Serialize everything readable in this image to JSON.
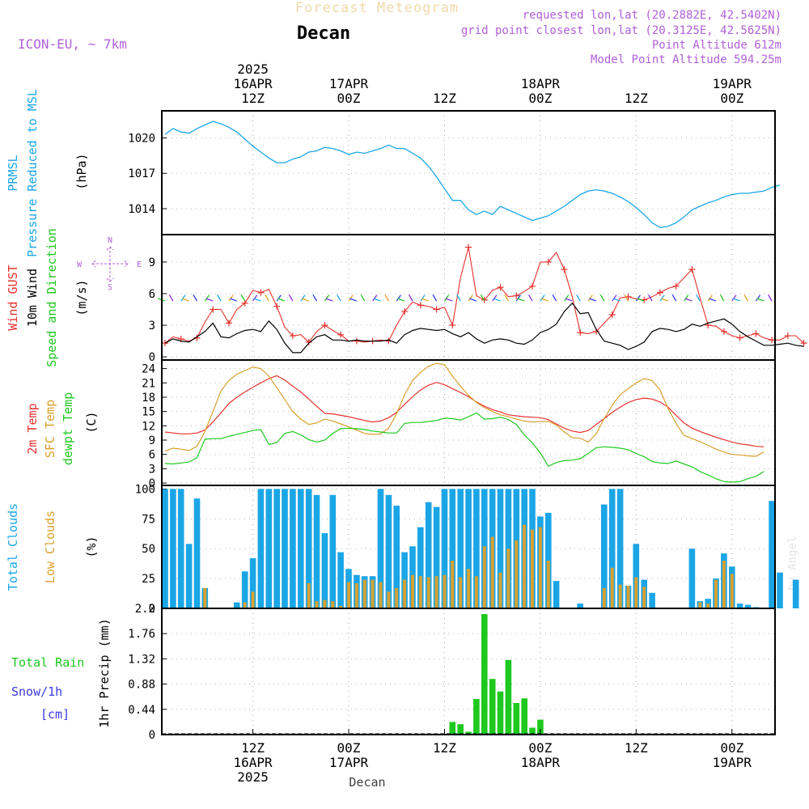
{
  "header": {
    "title": "Forecast Meteogram",
    "location": "Decan",
    "model": "ICON-EU, ~ 7km",
    "requested": "requested lon,lat (20.2882E, 42.5402N)",
    "grid": "grid point closest lon,lat (20.3125E, 42.5625N)",
    "altitude": "Point Altitude 612m",
    "model_altitude": "Model Point Altitude 594.25m",
    "footer_location": "Decan",
    "credit": "by Angel"
  },
  "top_axis": {
    "labels": [
      {
        "h": 12,
        "lines": [
          "2025",
          "16APR",
          "12Z"
        ]
      },
      {
        "h": 24,
        "lines": [
          "17APR",
          "00Z"
        ]
      },
      {
        "h": 36,
        "lines": [
          "12Z"
        ]
      },
      {
        "h": 48,
        "lines": [
          "18APR",
          "00Z"
        ]
      },
      {
        "h": 60,
        "lines": [
          "12Z"
        ]
      },
      {
        "h": 72,
        "lines": [
          "19APR",
          "00Z"
        ]
      }
    ]
  },
  "bottom_axis": {
    "labels": [
      {
        "h": 12,
        "lines": [
          "12Z",
          "16APR",
          "2025"
        ]
      },
      {
        "h": 24,
        "lines": [
          "00Z",
          "17APR"
        ]
      },
      {
        "h": 36,
        "lines": [
          "12Z"
        ]
      },
      {
        "h": 48,
        "lines": [
          "00Z",
          "18APR"
        ]
      },
      {
        "h": 60,
        "lines": [
          "12Z"
        ]
      },
      {
        "h": 72,
        "lines": [
          "00Z",
          "19APR"
        ]
      }
    ]
  },
  "panel_labels": {
    "pressure": [
      {
        "text": "PRMSL",
        "color": "#1aa6e6"
      },
      {
        "text": "Pressure Reduced to MSL",
        "color": "#1aa6e6"
      },
      {
        "text": "(hPa)",
        "color": "#000000"
      }
    ],
    "wind": [
      {
        "text": "Wind GUST",
        "color": "#e6322e"
      },
      {
        "text": "10m Wind",
        "color": "#000000"
      },
      {
        "text": "Speed and Direction",
        "color": "#1ec81e"
      },
      {
        "text": "(m/s)",
        "color": "#000000"
      }
    ],
    "temp": [
      {
        "text": "2m Temp",
        "color": "#e6322e"
      },
      {
        "text": "SFC Temp",
        "color": "#d8a030"
      },
      {
        "text": "dewpt Temp",
        "color": "#1ec81e"
      },
      {
        "text": "(C)",
        "color": "#000000"
      }
    ],
    "cloud": [
      {
        "text": "Total Clouds",
        "color": "#1aa6e6"
      },
      {
        "text": "Low Clouds",
        "color": "#d8a030"
      },
      {
        "text": "(%)",
        "color": "#000000"
      }
    ],
    "precip_axis": "1hr Precip (mm)",
    "precip_legend": [
      {
        "text": "Total  Rain",
        "color": "#1ec81e"
      },
      {
        "text": "Snow/1h",
        "color": "#3a3ae6"
      },
      {
        "text": "[cm]",
        "color": "#3a3ae6"
      }
    ]
  },
  "compass": {
    "n": "N",
    "s": "S",
    "w": "W",
    "e": "E"
  },
  "chart_data": [
    {
      "type": "line",
      "name": "pressure",
      "x_unit": "hours from 16APR 00Z",
      "x_range": [
        1,
        77
      ],
      "ylim": [
        1011.8,
        1022.3
      ],
      "yticks": [
        1014,
        1017,
        1020
      ],
      "series": [
        {
          "name": "PRMSL",
          "color": "#1aa6e6",
          "values": [
            1020.3,
            1020.8,
            1020.5,
            1020.4,
            1020.8,
            1021.1,
            1021.4,
            1021.2,
            1020.9,
            1020.5,
            1019.9,
            1019.3,
            1018.8,
            1018.3,
            1017.9,
            1017.9,
            1018.2,
            1018.4,
            1018.8,
            1018.9,
            1019.2,
            1019.1,
            1018.9,
            1018.6,
            1018.8,
            1018.7,
            1018.9,
            1019.1,
            1019.4,
            1019.1,
            1019.1,
            1018.7,
            1018.3,
            1017.6,
            1016.7,
            1015.7,
            1014.7,
            1014.7,
            1013.9,
            1013.5,
            1013.8,
            1013.5,
            1014.2,
            1013.9,
            1013.6,
            1013.3,
            1013.0,
            1013.2,
            1013.4,
            1013.8,
            1014.2,
            1014.7,
            1015.2,
            1015.5,
            1015.6,
            1015.5,
            1015.3,
            1015.0,
            1014.6,
            1014.1,
            1013.5,
            1012.8,
            1012.4,
            1012.5,
            1012.8,
            1013.3,
            1013.9,
            1014.2,
            1014.5,
            1014.7,
            1015.0,
            1015.2,
            1015.3,
            1015.3,
            1015.4,
            1015.5,
            1015.8,
            1016.0
          ]
        }
      ]
    },
    {
      "type": "line",
      "name": "wind",
      "x_unit": "hours from 16APR 00Z",
      "ylim": [
        -0.3,
        11.6
      ],
      "yticks": [
        0,
        3,
        6,
        9
      ],
      "series": [
        {
          "name": "Wind GUST",
          "color": "#e6322e",
          "values": [
            1.3,
            1.9,
            1.7,
            1.5,
            1.8,
            3.3,
            4.5,
            4.5,
            3.2,
            4.5,
            5.1,
            6.3,
            6.1,
            6.4,
            4.8,
            2.8,
            2.0,
            2.1,
            1.4,
            2.4,
            3.0,
            2.5,
            2.1,
            1.5,
            1.5,
            1.4,
            1.5,
            1.6,
            1.5,
            3.0,
            4.3,
            5.2,
            4.9,
            4.8,
            4.5,
            4.7,
            3.0,
            7.5,
            10.4,
            5.8,
            5.4,
            6.3,
            6.6,
            5.7,
            5.8,
            6.2,
            6.7,
            9.0,
            9.0,
            9.9,
            8.3,
            5.7,
            2.3,
            2.2,
            2.4,
            3.2,
            4.0,
            5.6,
            5.7,
            5.5,
            5.4,
            5.7,
            6.1,
            6.5,
            6.7,
            7.5,
            8.3,
            5.6,
            3.0,
            2.9,
            2.4,
            2.0,
            1.8,
            2.0,
            2.2,
            1.8,
            1.6,
            1.6,
            2.0,
            2.0,
            1.3
          ]
        },
        {
          "name": "10m Wind",
          "color": "#000000",
          "values": [
            1.3,
            1.7,
            1.5,
            1.4,
            1.9,
            2.4,
            3.2,
            1.9,
            1.8,
            2.2,
            2.5,
            2.6,
            2.4,
            3.4,
            2.6,
            1.3,
            0.4,
            0.4,
            1.3,
            1.9,
            2.1,
            1.6,
            1.6,
            1.5,
            1.6,
            1.5,
            1.5,
            1.5,
            1.6,
            1.3,
            2.1,
            2.5,
            2.7,
            2.6,
            2.5,
            2.6,
            2.2,
            1.9,
            2.3,
            1.7,
            1.3,
            1.6,
            1.7,
            1.6,
            1.3,
            1.2,
            1.6,
            2.3,
            2.6,
            3.1,
            4.3,
            5.1,
            4.1,
            4.2,
            2.6,
            1.5,
            1.3,
            1.1,
            0.7,
            1.0,
            1.4,
            2.4,
            2.7,
            2.6,
            2.4,
            2.6,
            3.1,
            2.9,
            3.2,
            3.4,
            3.6,
            3.1,
            2.4,
            1.9,
            1.5,
            1.1,
            1.1,
            1.2,
            1.3,
            1.1,
            1.0
          ]
        }
      ]
    },
    {
      "type": "line",
      "name": "temperature",
      "x_unit": "hours from 16APR 00Z",
      "ylim": [
        -0.5,
        25.8
      ],
      "yticks": [
        0,
        3,
        6,
        9,
        12,
        15,
        18,
        21,
        24
      ],
      "series": [
        {
          "name": "2m Temp",
          "color": "#e6322e",
          "values": [
            10.7,
            10.5,
            10.3,
            10.3,
            10.5,
            11.1,
            12.8,
            14.7,
            16.7,
            18.0,
            19.1,
            20.1,
            21.0,
            21.9,
            22.5,
            21.6,
            20.3,
            19.1,
            17.6,
            16.1,
            14.6,
            14.5,
            14.2,
            13.9,
            13.5,
            13.1,
            12.8,
            13.0,
            13.7,
            14.8,
            16.5,
            18.1,
            19.5,
            20.5,
            21.1,
            20.6,
            19.8,
            19.0,
            18.1,
            17.0,
            16.1,
            15.4,
            14.9,
            14.3,
            14.1,
            13.9,
            13.8,
            13.7,
            13.3,
            12.4,
            11.5,
            10.9,
            10.6,
            11.0,
            12.3,
            13.5,
            14.8,
            15.9,
            16.9,
            17.5,
            17.8,
            17.6,
            17.0,
            15.9,
            14.2,
            12.6,
            11.5,
            10.8,
            10.2,
            9.6,
            9.1,
            8.6,
            8.2,
            8.0,
            7.7,
            7.6
          ]
        },
        {
          "name": "SFC Temp",
          "color": "#d8a030",
          "values": [
            6.7,
            7.3,
            7.1,
            6.8,
            7.7,
            10.8,
            15.0,
            19.3,
            21.5,
            22.8,
            23.6,
            24.3,
            24.0,
            22.4,
            20.0,
            17.5,
            15.0,
            13.4,
            12.3,
            12.6,
            13.4,
            13.0,
            12.4,
            11.8,
            11.1,
            10.4,
            10.2,
            10.3,
            11.5,
            14.5,
            18.5,
            21.5,
            23.2,
            24.5,
            25.1,
            24.8,
            22.4,
            20.3,
            18.4,
            16.9,
            15.8,
            15.0,
            14.3,
            13.9,
            13.4,
            13.0,
            12.8,
            12.9,
            12.9,
            12.2,
            10.7,
            9.5,
            9.4,
            8.6,
            10.3,
            13.5,
            16.3,
            18.5,
            19.8,
            21.0,
            21.9,
            21.5,
            19.5,
            15.6,
            12.5,
            10.0,
            9.3,
            8.7,
            7.9,
            7.1,
            6.5,
            6.0,
            5.9,
            5.7,
            5.6,
            6.5
          ]
        },
        {
          "name": "dewpt Temp",
          "color": "#1ec81e",
          "values": [
            4.1,
            4.0,
            4.2,
            4.4,
            5.3,
            9.2,
            9.3,
            9.3,
            9.8,
            10.2,
            10.6,
            11.0,
            11.2,
            8.1,
            8.5,
            10.4,
            10.8,
            10.1,
            9.1,
            8.6,
            9.0,
            10.4,
            11.4,
            11.5,
            11.4,
            11.2,
            10.9,
            10.7,
            10.5,
            10.5,
            12.5,
            12.7,
            12.7,
            12.9,
            13.1,
            13.6,
            13.5,
            13.2,
            13.9,
            14.7,
            13.4,
            13.5,
            13.8,
            13.3,
            12.3,
            10.1,
            8.4,
            6.3,
            3.5,
            4.3,
            4.7,
            4.8,
            5.1,
            6.2,
            7.4,
            7.6,
            7.5,
            7.3,
            7.0,
            6.2,
            5.5,
            4.5,
            4.2,
            4.1,
            4.6,
            4.0,
            3.4,
            2.4,
            1.7,
            0.9,
            0.3,
            0.2,
            0.3,
            0.9,
            1.4,
            2.4
          ]
        }
      ]
    },
    {
      "type": "bar",
      "name": "clouds",
      "x_unit": "hours from 16APR 00Z",
      "ylim": [
        0,
        103
      ],
      "yticks": [
        0,
        25,
        50,
        75,
        100
      ],
      "series": [
        {
          "name": "Total Clouds",
          "color": "#1aa6e6",
          "values": [
            100,
            100,
            100,
            54,
            92,
            17,
            0,
            0,
            0,
            5,
            31,
            42,
            100,
            100,
            100,
            100,
            100,
            100,
            100,
            95,
            63,
            95,
            47,
            33,
            28,
            27,
            27,
            100,
            95,
            86,
            47,
            52,
            68,
            89,
            85,
            100,
            100,
            100,
            100,
            100,
            100,
            100,
            100,
            100,
            100,
            100,
            100,
            77,
            80,
            23,
            0,
            0,
            4,
            0,
            0,
            87,
            100,
            100,
            19,
            54,
            24,
            13,
            0,
            0,
            0,
            0,
            50,
            6,
            8,
            25,
            46,
            35,
            4,
            3,
            1,
            0,
            90,
            30,
            0,
            24
          ]
        },
        {
          "name": "Low Clouds",
          "color": "#d8a030",
          "values": [
            0,
            0,
            0,
            0,
            0,
            17,
            0,
            0,
            0,
            0,
            5,
            14,
            0,
            0,
            0,
            0,
            0,
            0,
            21,
            6,
            7,
            6,
            2,
            22,
            21,
            24,
            24,
            22,
            14,
            17,
            24,
            28,
            27,
            26,
            27,
            28,
            40,
            26,
            33,
            27,
            52,
            60,
            30,
            50,
            57,
            70,
            66,
            68,
            40,
            0,
            0,
            0,
            0,
            0,
            0,
            17,
            34,
            20,
            19,
            26,
            18,
            0,
            0,
            0,
            0,
            0,
            0,
            5,
            4,
            24,
            40,
            29,
            0,
            0,
            0,
            0,
            0,
            0,
            0,
            0
          ]
        }
      ]
    },
    {
      "type": "bar",
      "name": "precipitation",
      "x_unit": "hours from 16APR 00Z",
      "ylim": [
        0,
        2.2
      ],
      "yticks": [
        0,
        0.44,
        0.88,
        1.32,
        1.76,
        2.2
      ],
      "series": [
        {
          "name": "Total Rain",
          "color": "#1ec81e",
          "points": [
            [
              37,
              0.22
            ],
            [
              38,
              0.18
            ],
            [
              39,
              0.05
            ],
            [
              40,
              0.62
            ],
            [
              41,
              2.1
            ],
            [
              42,
              0.97
            ],
            [
              43,
              0.75
            ],
            [
              44,
              1.3
            ],
            [
              45,
              0.55
            ],
            [
              46,
              0.63
            ],
            [
              47,
              0.12
            ],
            [
              48,
              0.26
            ]
          ]
        }
      ]
    }
  ]
}
